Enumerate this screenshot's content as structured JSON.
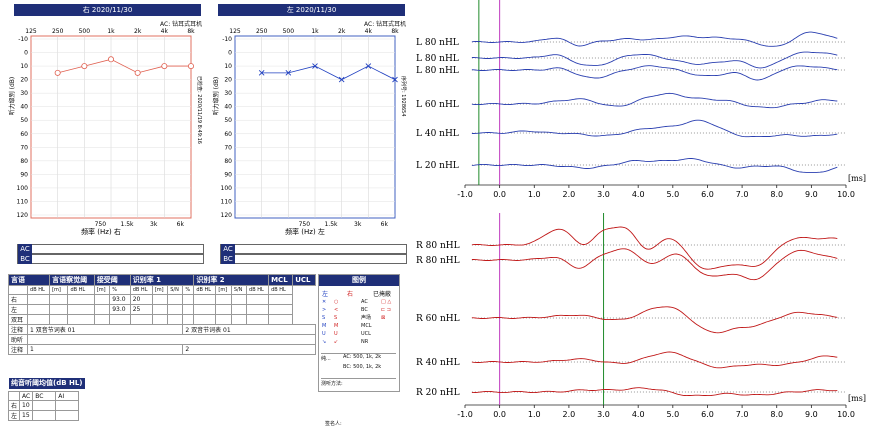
{
  "audiogram": {
    "right": {
      "header": "右 2020/11/30",
      "type": "AC: 钻耳式耳机",
      "freqs_top": [
        "125",
        "250",
        "500",
        "1k",
        "2k",
        "4k",
        "8k"
      ],
      "freqs_bottom": [
        "750",
        "1.5k",
        "3k",
        "6k"
      ],
      "xlabel": "频率 (Hz) 右",
      "ylabel": "听力级别 (dB)",
      "side_note": "已检查: 2020/11/19 8:49:16",
      "db_ticks": [
        "-10",
        "0",
        "10",
        "20",
        "30",
        "40",
        "50",
        "60",
        "70",
        "80",
        "90",
        "100",
        "110",
        "120"
      ],
      "points": [
        15,
        10,
        5,
        15,
        10,
        10
      ],
      "color": "#e06050"
    },
    "left": {
      "header": "左 2020/11/30",
      "type": "AC: 钻耳式耳机",
      "freqs_top": [
        "125",
        "250",
        "500",
        "1k",
        "2k",
        "4k",
        "8k"
      ],
      "freqs_bottom": [
        "750",
        "1.5k",
        "3k",
        "6k"
      ],
      "xlabel": "频率 (Hz) 左",
      "ylabel": "听力级别 (dB)",
      "side_note": "序列号: 1928654",
      "db_ticks": [
        "-10",
        "0",
        "10",
        "20",
        "30",
        "40",
        "50",
        "60",
        "70",
        "80",
        "90",
        "100",
        "110",
        "120"
      ],
      "points": [
        15,
        15,
        10,
        20,
        10,
        20
      ],
      "color": "#2040c0"
    },
    "ac_label": "AC",
    "bc_label": "BC"
  },
  "speech_table": {
    "header": [
      "言语",
      "言语察觉阈",
      "接受阈",
      "识别率 1",
      "识别率 2",
      "MCL",
      "UCL"
    ],
    "subheader": [
      "dB HL",
      "[m]",
      "dB HL",
      "[m]",
      "%",
      "dB HL",
      "[m]",
      "S/N",
      "%",
      "dB HL",
      "[m]",
      "S/N",
      "dB HL",
      "dB HL"
    ],
    "rows": [
      {
        "label": "右",
        "rec_pct": "93.0",
        "rec_db": "20"
      },
      {
        "label": "左",
        "rec_pct": "93.0",
        "rec_db": "25"
      },
      {
        "label": "双耳"
      }
    ],
    "note_label": "注释",
    "note_1": "1 双音节词表 01",
    "note_2": "2 双音节词表 01",
    "aid_label": "助听",
    "note_label2": "注释",
    "note_3": "1",
    "note_4": "2"
  },
  "pta": {
    "title": "纯音听阈均值(dB HL)",
    "cols": [
      "AC",
      "BC",
      "AI"
    ],
    "rows": [
      {
        "label": "右",
        "ac": "10"
      },
      {
        "label": "左",
        "ac": "15"
      }
    ]
  },
  "legend": {
    "title": "图例",
    "col_left": "左",
    "col_right": "右",
    "col_masked": "已掩蔽",
    "items": [
      "AC",
      "BC",
      "声场",
      "MCL",
      "UCL",
      "NR"
    ],
    "pure": "纯...",
    "ac_freqs": "AC: 500, 1k, 2k",
    "bc_freqs": "BC: 500, 1k, 2k",
    "method": "测听方法:"
  },
  "bottom_note": "签名人:",
  "abr_top": {
    "labels": [
      "L 80 nHL",
      "L 80 nHL",
      "L 80 nHL",
      "L 60 nHL",
      "L 40 nHL",
      "L 20 nHL"
    ],
    "xticks": [
      "-1.0",
      "0.0",
      "1.0",
      "2.0",
      "3.0",
      "4.0",
      "5.0",
      "6.0",
      "7.0",
      "8.0",
      "9.0",
      "10.0"
    ],
    "unit": "[ms]",
    "color": "#2a3fb0"
  },
  "abr_bottom": {
    "labels": [
      "R 80 nHL",
      "R 80 nHL",
      "R 60 nHL",
      "R 40 nHL",
      "R 20 nHL"
    ],
    "xticks": [
      "-1.0",
      "0.0",
      "1.0",
      "2.0",
      "3.0",
      "4.0",
      "5.0",
      "6.0",
      "7.0",
      "8.0",
      "9.0",
      "10.0"
    ],
    "unit": "[ms]",
    "color": "#c01818"
  }
}
